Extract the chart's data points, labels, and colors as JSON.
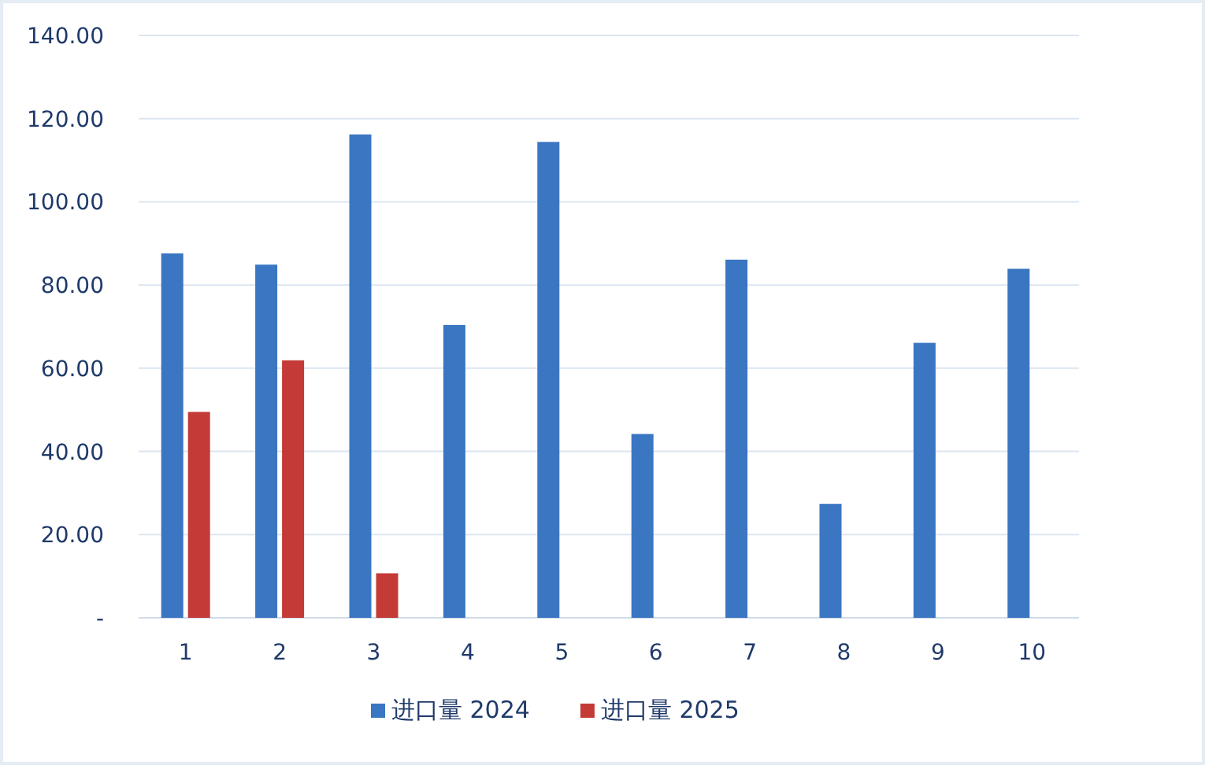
{
  "chart_data": {
    "type": "bar",
    "categories": [
      "1",
      "2",
      "3",
      "4",
      "5",
      "6",
      "7",
      "8",
      "9",
      "10"
    ],
    "series": [
      {
        "name": "进口量 2024",
        "color": "#3a76c2",
        "values": [
          87.6,
          84.9,
          116.2,
          70.4,
          114.4,
          44.2,
          86.1,
          27.4,
          66.1,
          83.9
        ]
      },
      {
        "name": "进口量 2025",
        "color": "#c43a36",
        "values": [
          49.5,
          61.9,
          10.7,
          null,
          null,
          null,
          null,
          null,
          null,
          null
        ]
      }
    ],
    "ylim": [
      0,
      140
    ],
    "yticks": [
      {
        "value": 0,
        "label": "-"
      },
      {
        "value": 20,
        "label": "20.00"
      },
      {
        "value": 40,
        "label": "40.00"
      },
      {
        "value": 60,
        "label": "60.00"
      },
      {
        "value": 80,
        "label": "80.00"
      },
      {
        "value": 100,
        "label": "100.00"
      },
      {
        "value": 120,
        "label": "120.00"
      },
      {
        "value": 140,
        "label": "140.00"
      }
    ],
    "grid": "y",
    "legend": "bottom"
  }
}
